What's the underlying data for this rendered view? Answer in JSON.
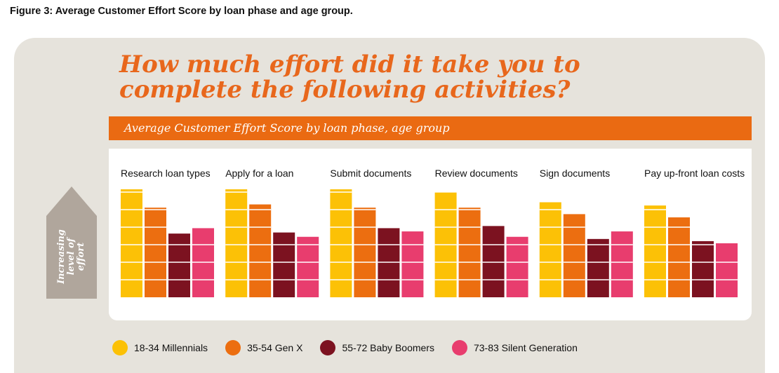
{
  "caption": "Figure 3: Average Customer Effort Score by loan phase and age group.",
  "headline": {
    "line1": "How much effort did it take you to",
    "line2": "complete the following activities?"
  },
  "subtitle": "Average Customer Effort Score by loan phase, age group",
  "effort_label": {
    "line1": "Increasing",
    "line2": "level of",
    "line3": "effort"
  },
  "colors": {
    "accent": "#e8671c",
    "panel": "#e6e3dc",
    "arrow": "#b0a69c"
  },
  "chart_data": {
    "type": "bar",
    "title": "How much effort did it take you to complete the following activities?",
    "subtitle": "Average Customer Effort Score by loan phase, age group",
    "ylabel": "Increasing level of effort",
    "ylim": [
      0,
      1
    ],
    "y_axis_numeric_labels": false,
    "grid": false,
    "legend_position": "bottom",
    "categories": [
      "Research loan types",
      "Apply for a loan",
      "Submit documents",
      "Review documents",
      "Sign documents",
      "Pay up-front loan costs"
    ],
    "series": [
      {
        "name": "18-34 Millennials",
        "color": "#fcc106",
        "values": [
          1.0,
          1.0,
          1.0,
          0.97,
          0.88,
          0.85
        ]
      },
      {
        "name": "35-54 Gen X",
        "color": "#ec6e10",
        "values": [
          0.83,
          0.86,
          0.83,
          0.83,
          0.77,
          0.74
        ]
      },
      {
        "name": "55-72 Baby Boomers",
        "color": "#7c1220",
        "values": [
          0.59,
          0.6,
          0.64,
          0.66,
          0.54,
          0.52
        ]
      },
      {
        "name": "73-83 Silent Generation",
        "color": "#e83d6e",
        "values": [
          0.64,
          0.56,
          0.61,
          0.56,
          0.61,
          0.5
        ]
      }
    ]
  }
}
